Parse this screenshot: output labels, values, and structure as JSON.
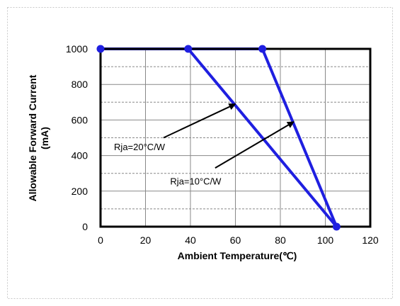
{
  "chart_data": {
    "type": "line",
    "xlabel": "Ambient  Temperature(℃)",
    "ylabel_line1": "Allowable  Forward Current",
    "ylabel_line2": "(mA)",
    "xlim": [
      0,
      120
    ],
    "ylim": [
      0,
      1000
    ],
    "xticks": [
      0,
      20,
      40,
      60,
      80,
      100,
      120
    ],
    "yticks": [
      0,
      200,
      400,
      600,
      800,
      1000
    ],
    "grid": true,
    "series": [
      {
        "name": "Rja=20°C/W",
        "x": [
          0,
          39,
          105
        ],
        "y": [
          1000,
          1000,
          0
        ],
        "color": "#1f1fe0"
      },
      {
        "name": "Rja=10°C/W",
        "x": [
          0,
          72,
          105
        ],
        "y": [
          1000,
          1000,
          0
        ],
        "color": "#1f1fe0"
      }
    ],
    "annotations": [
      {
        "text": "Rja=20°C/W",
        "x": 6,
        "y": 430,
        "arrow_from": [
          28,
          500
        ],
        "arrow_to": [
          60,
          690
        ]
      },
      {
        "text": "Rja=10°C/W",
        "x": 31,
        "y": 238,
        "arrow_from": [
          51,
          330
        ],
        "arrow_to": [
          86,
          590
        ]
      }
    ],
    "marker_points": [
      [
        0,
        1000
      ],
      [
        39,
        1000
      ],
      [
        72,
        1000
      ],
      [
        105,
        0
      ]
    ],
    "colors": {
      "line": "#1f1fe0",
      "marker": "#1f1fe0",
      "grid": "#888888",
      "frame": "#000000",
      "arrow": "#000000"
    }
  }
}
